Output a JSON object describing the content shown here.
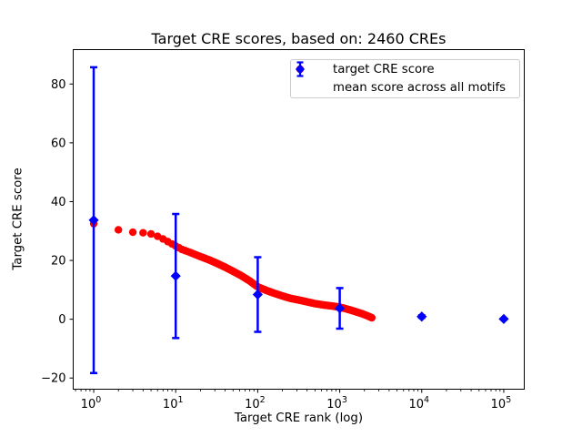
{
  "figure": {
    "background": "#ffffff",
    "text_color": "#000000",
    "legend_border_color": "#cccccc"
  },
  "chart_data": {
    "type": "scatter",
    "title": "Target CRE scores, based on: 2460 CREs",
    "xlabel": "Target CRE rank (log)",
    "ylabel": "Target CRE score",
    "x_scale": "log",
    "grid": false,
    "xlim": [
      0.5623,
      177828
    ],
    "ylim": [
      -23.8,
      91.7
    ],
    "y_ticks": [
      {
        "value": -20,
        "label": "−20"
      },
      {
        "value": 0,
        "label": "0"
      },
      {
        "value": 20,
        "label": "20"
      },
      {
        "value": 40,
        "label": "40"
      },
      {
        "value": 60,
        "label": "60"
      },
      {
        "value": 80,
        "label": "80"
      }
    ],
    "x_ticks": [
      {
        "value": 1,
        "label_base": "10",
        "label_exp": "0"
      },
      {
        "value": 10,
        "label_base": "10",
        "label_exp": "1"
      },
      {
        "value": 100,
        "label_base": "10",
        "label_exp": "2"
      },
      {
        "value": 1000,
        "label_base": "10",
        "label_exp": "3"
      },
      {
        "value": 10000,
        "label_base": "10",
        "label_exp": "4"
      },
      {
        "value": 100000,
        "label_base": "10",
        "label_exp": "5"
      }
    ],
    "legend": {
      "position": "upper right"
    },
    "series": [
      {
        "name": "target CRE score",
        "marker": "circle",
        "color": "#ff0000",
        "n_points": 2460,
        "curve_anchors": [
          [
            1,
            32.5
          ],
          [
            2,
            30.4
          ],
          [
            3,
            29.6
          ],
          [
            4,
            29.4
          ],
          [
            5,
            29.0
          ],
          [
            6,
            28.2
          ],
          [
            7,
            27.3
          ],
          [
            8,
            26.4
          ],
          [
            9,
            25.6
          ],
          [
            10,
            24.9
          ],
          [
            12,
            23.7
          ],
          [
            15,
            22.7
          ],
          [
            20,
            21.3
          ],
          [
            26,
            20.1
          ],
          [
            33,
            18.8
          ],
          [
            40,
            17.7
          ],
          [
            50,
            16.3
          ],
          [
            63,
            14.8
          ],
          [
            80,
            13.0
          ],
          [
            100,
            11.0
          ],
          [
            130,
            9.7
          ],
          [
            160,
            8.8
          ],
          [
            200,
            7.9
          ],
          [
            250,
            7.1
          ],
          [
            320,
            6.5
          ],
          [
            400,
            5.9
          ],
          [
            500,
            5.3
          ],
          [
            650,
            4.8
          ],
          [
            800,
            4.5
          ],
          [
            1000,
            4.1
          ],
          [
            1250,
            3.4
          ],
          [
            1550,
            2.6
          ],
          [
            1900,
            1.8
          ],
          [
            2200,
            1.1
          ],
          [
            2460,
            0.5
          ]
        ]
      },
      {
        "name": "mean score across all motifs",
        "marker": "diamond",
        "color": "#0000ff",
        "points": [
          {
            "x": 1,
            "mean": 33.7,
            "std": 52.0
          },
          {
            "x": 10,
            "mean": 14.7,
            "std": 21.1
          },
          {
            "x": 100,
            "mean": 8.4,
            "std": 12.7
          },
          {
            "x": 1000,
            "mean": 3.7,
            "std": 6.9
          },
          {
            "x": 10000,
            "mean": 0.9,
            "std": 0.4
          },
          {
            "x": 100000,
            "mean": 0.1,
            "std": 0.15
          }
        ]
      }
    ]
  }
}
